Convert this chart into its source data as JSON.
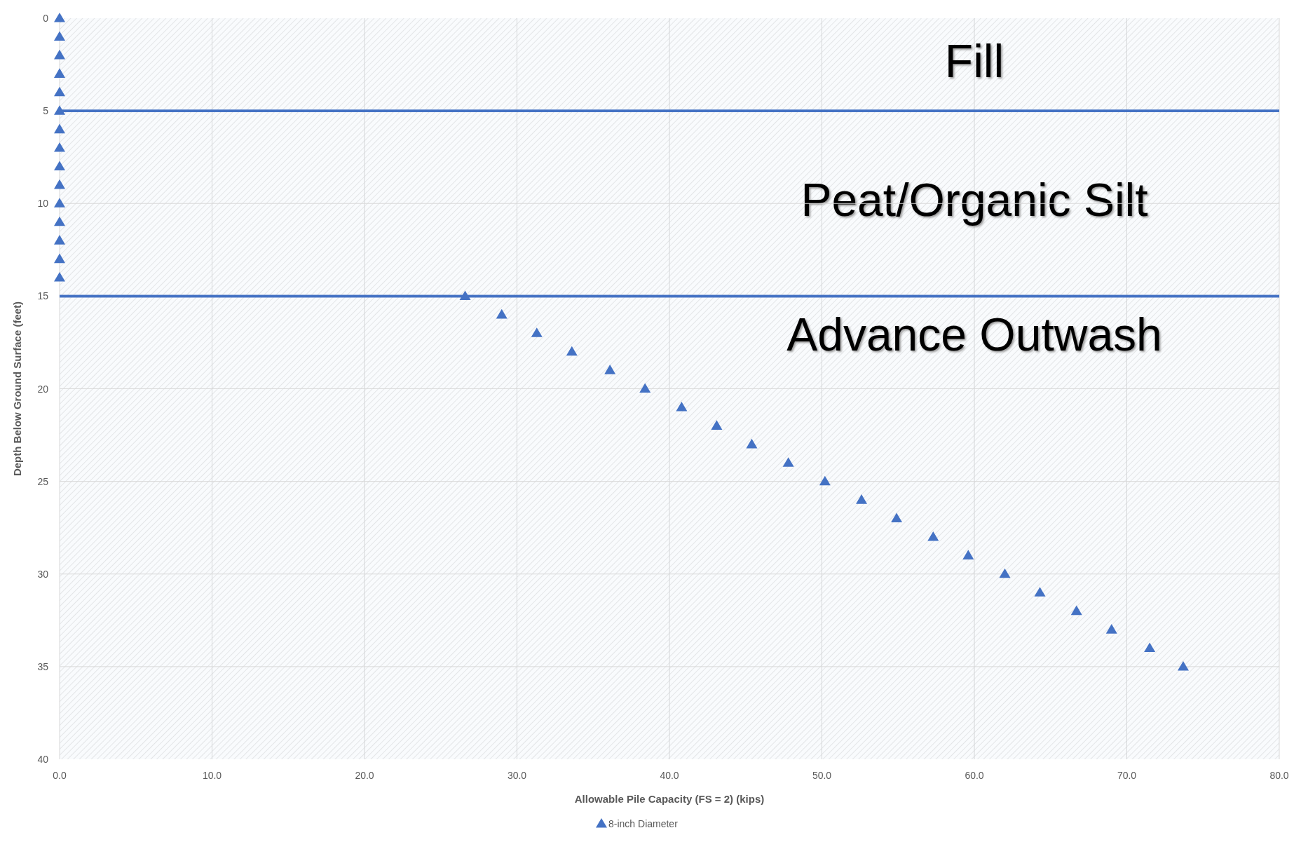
{
  "chart_data": {
    "type": "scatter",
    "xlabel": "Allowable Pile Capacity (FS = 2) (kips)",
    "ylabel": "Depth Below Ground Surface (feet)",
    "xlim": [
      0,
      80
    ],
    "xticks": [
      {
        "value": 0,
        "label": "0.0"
      },
      {
        "value": 10,
        "label": "10.0"
      },
      {
        "value": 20,
        "label": "20.0"
      },
      {
        "value": 30,
        "label": "30.0"
      },
      {
        "value": 40,
        "label": "40.0"
      },
      {
        "value": 50,
        "label": "50.0"
      },
      {
        "value": 60,
        "label": "60.0"
      },
      {
        "value": 70,
        "label": "70.0"
      },
      {
        "value": 80,
        "label": "80.0"
      }
    ],
    "ylim": [
      40,
      0
    ],
    "yticks": [
      0,
      5,
      10,
      15,
      20,
      25,
      30,
      35,
      40
    ],
    "grid": true,
    "legend": "bottom",
    "marker": "triangle",
    "series": [
      {
        "name": "8-inch Diameter",
        "color": "#4472c4",
        "x": [
          0,
          0,
          0,
          0,
          0,
          0,
          0,
          0,
          0,
          0,
          0,
          0,
          0,
          0,
          0,
          26.6,
          29.0,
          31.3,
          33.6,
          36.1,
          38.4,
          40.8,
          43.1,
          45.4,
          47.8,
          50.2,
          52.6,
          54.9,
          57.3,
          59.6,
          62.0,
          64.3,
          66.7,
          69.0,
          71.5,
          73.7
        ],
        "values": [
          0,
          1,
          2,
          3,
          4,
          5,
          6,
          7,
          8,
          9,
          10,
          11,
          12,
          13,
          14,
          15,
          16,
          17,
          18,
          19,
          20,
          21,
          22,
          23,
          24,
          25,
          26,
          27,
          28,
          29,
          30,
          31,
          32,
          33,
          34,
          35
        ]
      }
    ],
    "bands": [
      {
        "axis": "y",
        "from": 0,
        "to": 5,
        "label": "Fill",
        "color": "#4472c4"
      },
      {
        "axis": "y",
        "from": 5,
        "to": 15,
        "label": "Peat/Organic Silt",
        "color": "#4472c4"
      },
      {
        "axis": "y",
        "from": 15,
        "to": 40,
        "label": "Advance Outwash",
        "color": "#4472c4"
      }
    ]
  }
}
